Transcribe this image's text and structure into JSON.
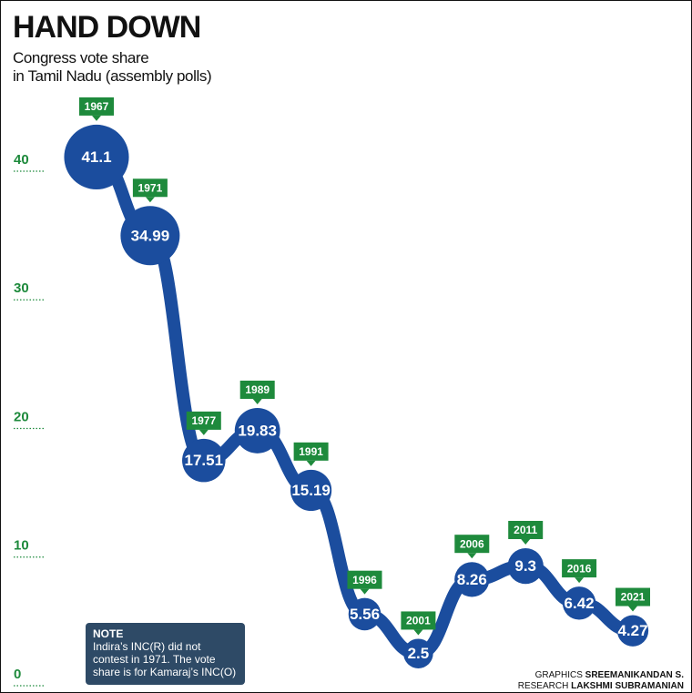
{
  "chart_data": {
    "type": "line",
    "title": "HAND DOWN",
    "subtitle": [
      "Congress vote share",
      "in Tamil Nadu (assembly polls)"
    ],
    "categories": [
      "1967",
      "1971",
      "1977",
      "1989",
      "1991",
      "1996",
      "2001",
      "2006",
      "2011",
      "2016",
      "2021"
    ],
    "values": [
      41.1,
      34.99,
      17.51,
      19.83,
      15.19,
      5.56,
      2.5,
      8.26,
      9.3,
      6.42,
      4.27
    ],
    "color": "#1b4d9e",
    "label_color": "#1e8a3c",
    "ylim": [
      0,
      40
    ],
    "yticks": [
      0,
      10,
      20,
      30,
      40
    ],
    "note": {
      "heading": "NOTE",
      "text": "Indira’s INC(R) did not contest in 1971. The vote share is for Kamaraj’s INC(O)"
    },
    "credits": [
      {
        "label": "GRAPHICS",
        "name": "SREEMANIKANDAN S."
      },
      {
        "label": "RESEARCH",
        "name": "LAKSHMI SUBRAMANIAN"
      }
    ]
  }
}
